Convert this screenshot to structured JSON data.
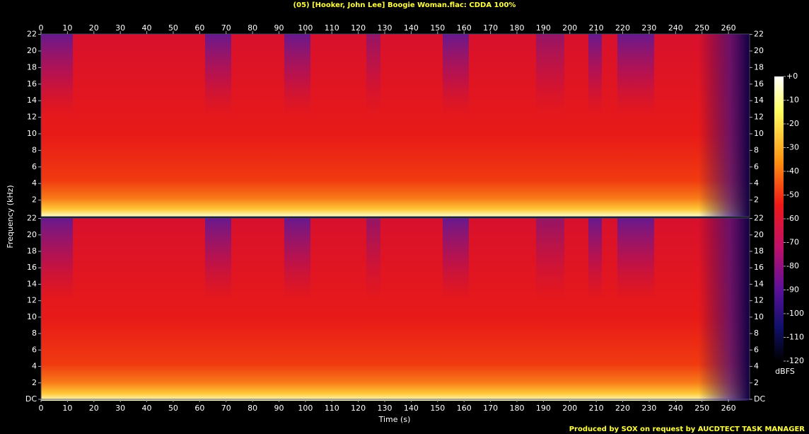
{
  "chart_data": {
    "type": "spectrogram",
    "title": "(05) [Hooker, John Lee] Boogie Woman.flac: CDDA 100%",
    "x_label": "Time (s)",
    "y_label": "Frequency (kHz)",
    "xlim": [
      0,
      268
    ],
    "xticks": [
      0,
      10,
      20,
      30,
      40,
      50,
      60,
      70,
      80,
      90,
      100,
      110,
      120,
      130,
      140,
      150,
      160,
      170,
      180,
      190,
      200,
      210,
      220,
      230,
      240,
      250,
      260
    ],
    "ylim": [
      0,
      22.05
    ],
    "yticks": [
      {
        "value": 0,
        "label": "DC"
      },
      2,
      4,
      6,
      8,
      10,
      12,
      14,
      16,
      18,
      20,
      22
    ],
    "colorbar_lim": [
      -120,
      0
    ],
    "colorbar_ticks": [
      {
        "value": 0,
        "label": "+0"
      },
      -10,
      -20,
      -30,
      -40,
      -50,
      -60,
      -70,
      -80,
      -90,
      -100,
      -110,
      -120
    ],
    "colorbar_label": "dBFS",
    "footer": "Produced by SOX on request by AUCDTECT TASK MANAGER"
  }
}
